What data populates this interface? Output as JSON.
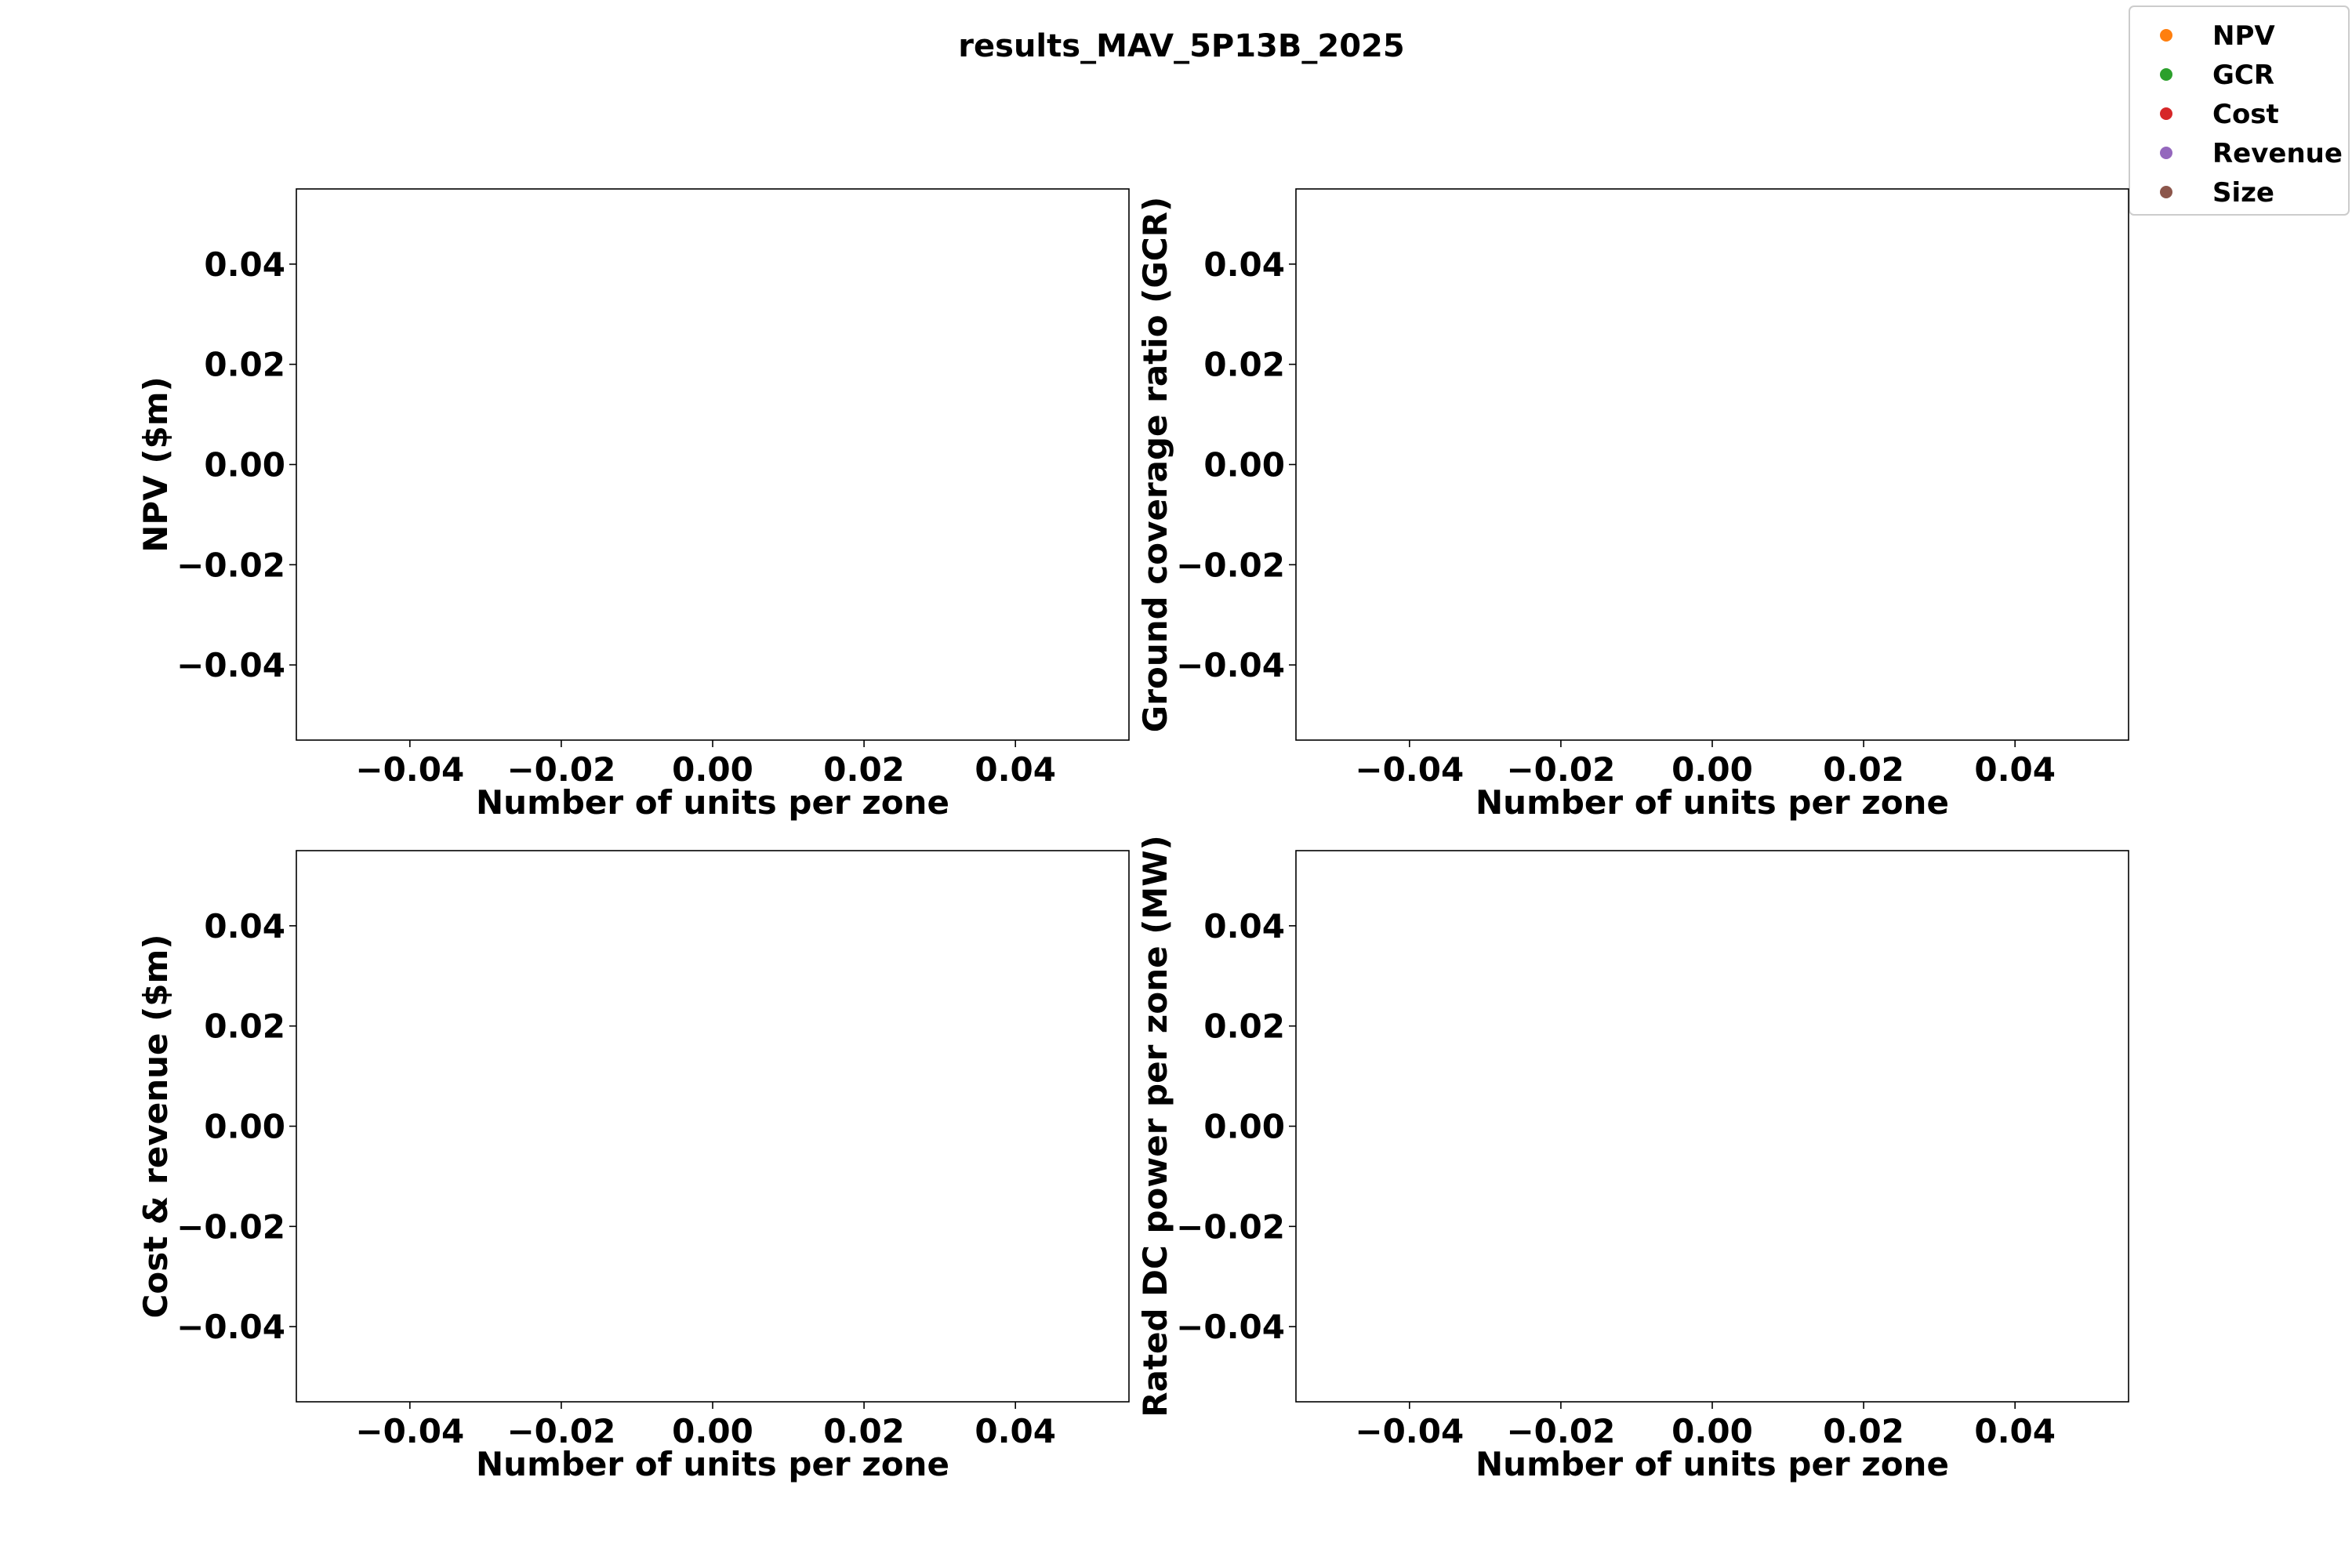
{
  "figure": {
    "title": "results_MAV_5P13B_2025"
  },
  "legend": {
    "items": [
      {
        "label": "NPV",
        "color": "#ff7f0e"
      },
      {
        "label": "GCR",
        "color": "#2ca02c"
      },
      {
        "label": "Cost",
        "color": "#d62728"
      },
      {
        "label": "Revenue",
        "color": "#9467bd"
      },
      {
        "label": "Size",
        "color": "#8c564b"
      }
    ]
  },
  "chart_data": [
    {
      "type": "scatter",
      "xlabel": "Number of units per zone",
      "ylabel": "NPV ($m)",
      "xlim": [
        -0.055,
        0.055
      ],
      "ylim": [
        -0.055,
        0.055
      ],
      "xticks": [
        "−0.04",
        "−0.02",
        "0.00",
        "0.02",
        "0.04"
      ],
      "yticks": [
        "−0.04",
        "−0.02",
        "0.00",
        "0.02",
        "0.04"
      ],
      "series": []
    },
    {
      "type": "scatter",
      "xlabel": "Number of units per zone",
      "ylabel": "Ground coverage ratio (GCR)",
      "xlim": [
        -0.055,
        0.055
      ],
      "ylim": [
        -0.055,
        0.055
      ],
      "xticks": [
        "−0.04",
        "−0.02",
        "0.00",
        "0.02",
        "0.04"
      ],
      "yticks": [
        "−0.04",
        "−0.02",
        "0.00",
        "0.02",
        "0.04"
      ],
      "series": []
    },
    {
      "type": "scatter",
      "xlabel": "Number of units per zone",
      "ylabel": "Cost & revenue ($m)",
      "xlim": [
        -0.055,
        0.055
      ],
      "ylim": [
        -0.055,
        0.055
      ],
      "xticks": [
        "−0.04",
        "−0.02",
        "0.00",
        "0.02",
        "0.04"
      ],
      "yticks": [
        "−0.04",
        "−0.02",
        "0.00",
        "0.02",
        "0.04"
      ],
      "series": []
    },
    {
      "type": "scatter",
      "xlabel": "Number of units per zone",
      "ylabel": "Rated DC power per zone (MW)",
      "xlim": [
        -0.055,
        0.055
      ],
      "ylim": [
        -0.055,
        0.055
      ],
      "xticks": [
        "−0.04",
        "−0.02",
        "0.00",
        "0.02",
        "0.04"
      ],
      "yticks": [
        "−0.04",
        "−0.02",
        "0.00",
        "0.02",
        "0.04"
      ],
      "series": []
    }
  ]
}
